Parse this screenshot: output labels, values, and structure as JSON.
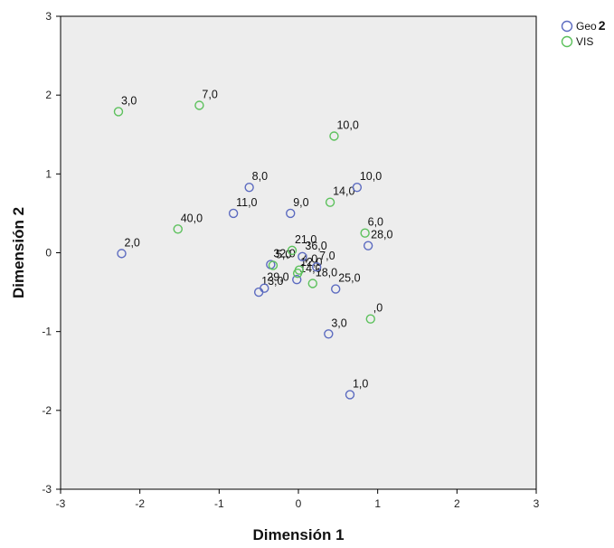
{
  "chart_data": {
    "type": "scatter",
    "title": "",
    "xlabel": "Dimensión 1",
    "ylabel": "Dimensión 2",
    "xlim": [
      -3,
      3
    ],
    "ylim": [
      -3,
      3
    ],
    "xticks": [
      "-3",
      "-2",
      "-1",
      "0",
      "1",
      "2",
      "3"
    ],
    "yticks": [
      "3",
      "2",
      "1",
      "0",
      "-1",
      "-2",
      "-3"
    ],
    "grid": false,
    "legend_position": "top-right",
    "plot_background": "#ededed",
    "series": [
      {
        "name": "Geo 2",
        "name_parts": [
          "Geo",
          "2"
        ],
        "color": "#5c6bc0",
        "points": [
          {
            "x": -2.23,
            "y": -0.01,
            "label": "2,0"
          },
          {
            "x": -0.62,
            "y": 0.83,
            "label": "8,0"
          },
          {
            "x": -0.82,
            "y": 0.5,
            "label": "11,0"
          },
          {
            "x": -0.1,
            "y": 0.5,
            "label": "9,0"
          },
          {
            "x": 0.74,
            "y": 0.83,
            "label": "10,0"
          },
          {
            "x": 0.88,
            "y": 0.09,
            "label": "28,0"
          },
          {
            "x": 0.05,
            "y": -0.05,
            "label": "36,0"
          },
          {
            "x": -0.35,
            "y": -0.15,
            "label": "32,0"
          },
          {
            "x": 0.23,
            "y": -0.18,
            "label": "7,0"
          },
          {
            "x": 0.47,
            "y": -0.46,
            "label": "25,0"
          },
          {
            "x": -0.02,
            "y": -0.34,
            "label": "14,0"
          },
          {
            "x": -0.43,
            "y": -0.45,
            "label": "29,0"
          },
          {
            "x": -0.5,
            "y": -0.5,
            "label": "13,0"
          },
          {
            "x": 0.38,
            "y": -1.03,
            "label": "3,0"
          },
          {
            "x": 0.65,
            "y": -1.8,
            "label": "1,0"
          }
        ]
      },
      {
        "name": "VIS",
        "color": "#5cc15c",
        "points": [
          {
            "x": -2.27,
            "y": 1.79,
            "label": "3,0"
          },
          {
            "x": -1.25,
            "y": 1.87,
            "label": "7,0"
          },
          {
            "x": 0.45,
            "y": 1.48,
            "label": "10,0"
          },
          {
            "x": -1.52,
            "y": 0.3,
            "label": "40,0"
          },
          {
            "x": 0.4,
            "y": 0.64,
            "label": "14,0"
          },
          {
            "x": 0.84,
            "y": 0.25,
            "label": "6,0"
          },
          {
            "x": -0.08,
            "y": 0.03,
            "label": "21,0"
          },
          {
            "x": -0.32,
            "y": -0.16,
            "label": "5,0"
          },
          {
            "x": 0.01,
            "y": -0.22,
            "label": "4,0"
          },
          {
            "x": -0.01,
            "y": -0.26,
            "label": "12,0"
          },
          {
            "x": 0.18,
            "y": -0.39,
            "label": "18,0"
          },
          {
            "x": 0.91,
            "y": -0.84,
            "label": ",0"
          }
        ]
      }
    ]
  }
}
